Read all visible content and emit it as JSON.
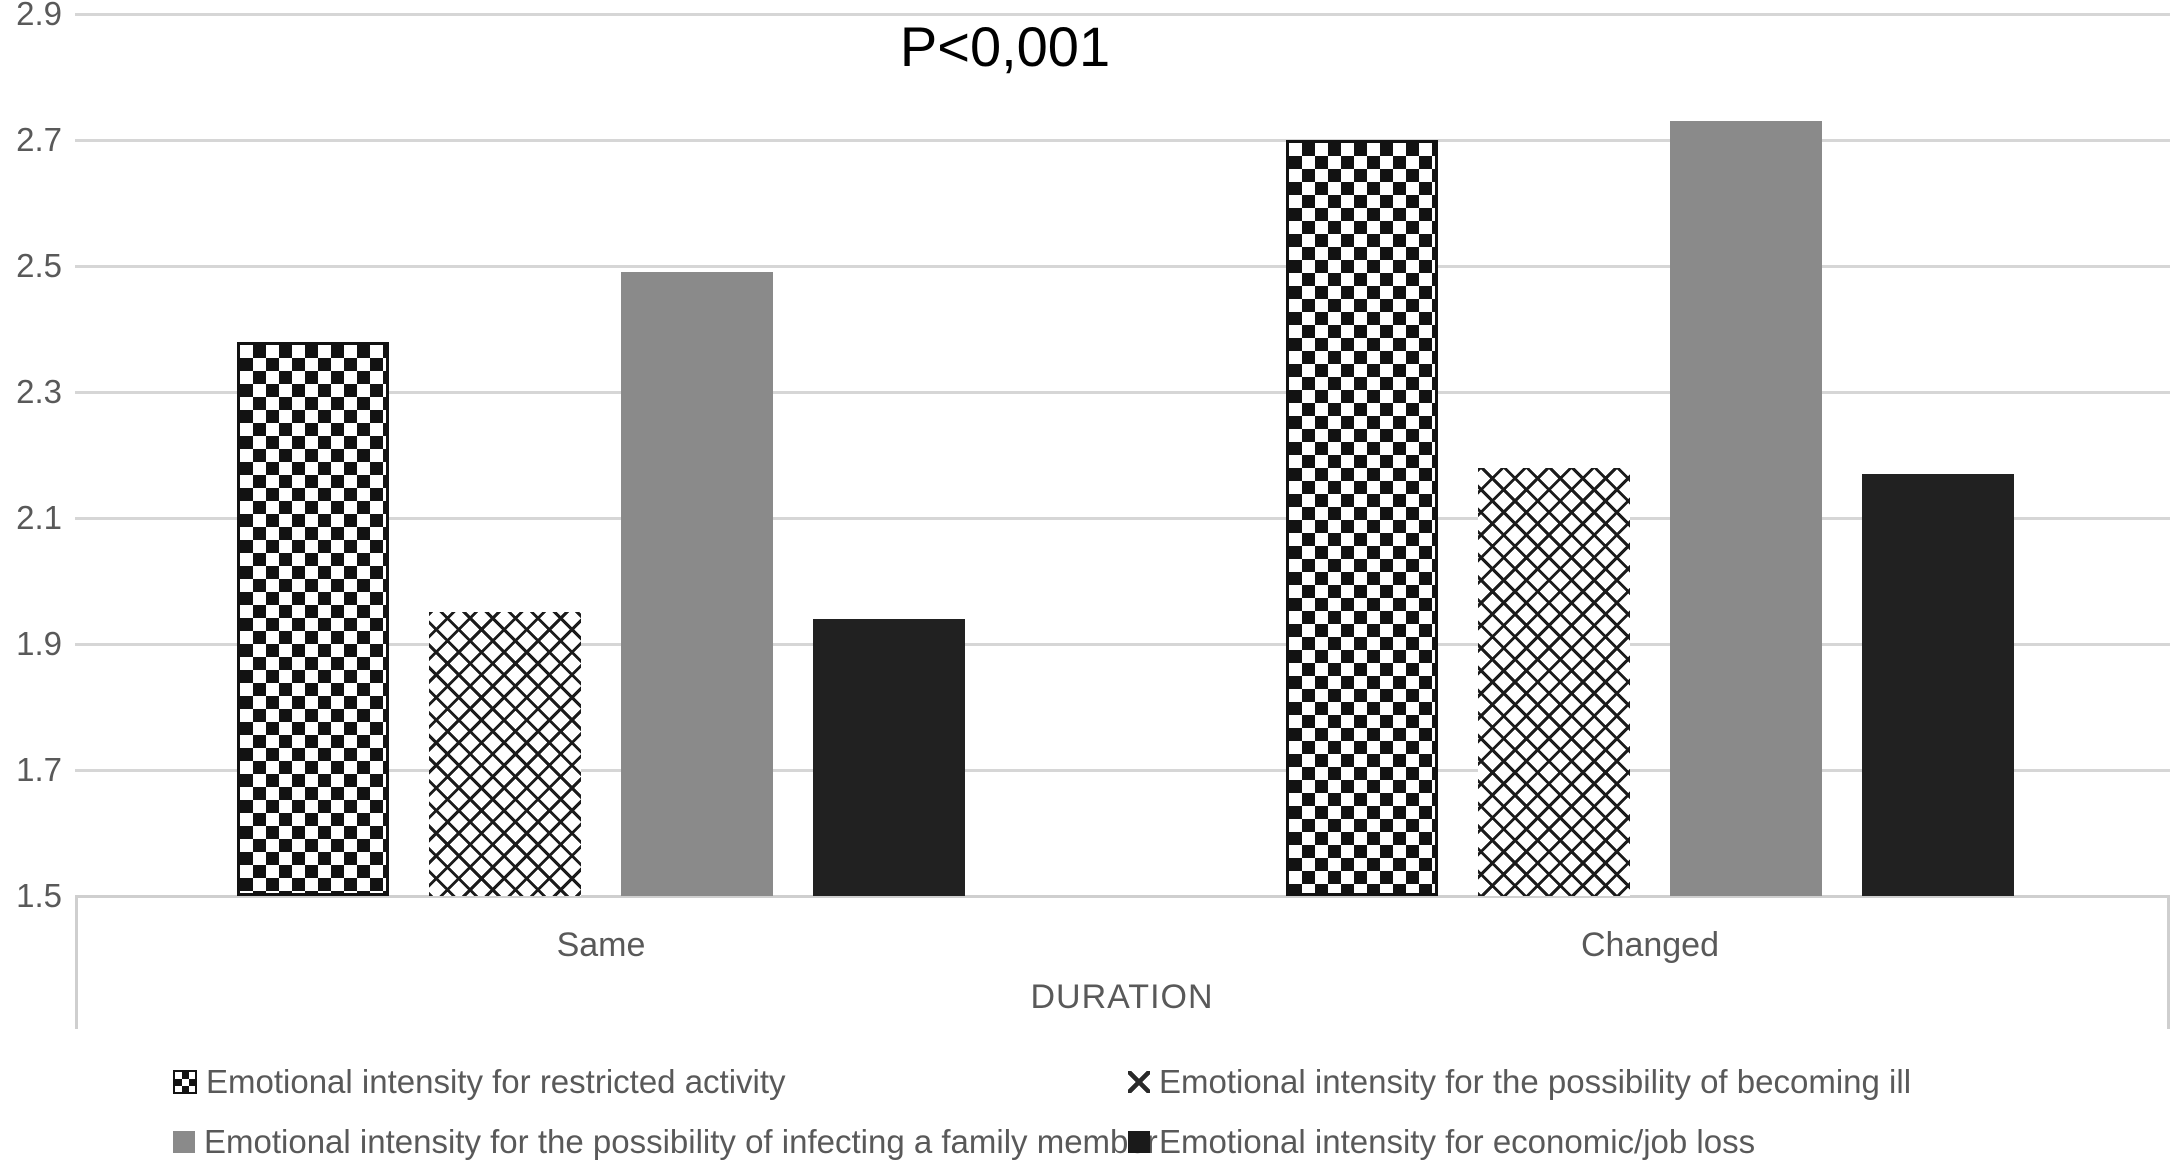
{
  "title": "P<0,001",
  "chart_data": {
    "type": "bar",
    "title": "P<0,001",
    "categories": [
      "Same",
      "Changed"
    ],
    "series": [
      {
        "name": "Emotional intensity for restricted activity",
        "pattern": "checker",
        "values": [
          2.38,
          2.7
        ]
      },
      {
        "name": "Emotional intensity for the possibility of becoming ill",
        "pattern": "crosshatch",
        "values": [
          1.95,
          2.18
        ]
      },
      {
        "name": "Emotional intensity for the possibility of infecting a family member",
        "pattern": "gray",
        "values": [
          2.49,
          2.73
        ]
      },
      {
        "name": "Emotional intensity for economic/job loss",
        "pattern": "dark",
        "values": [
          1.94,
          2.17
        ]
      }
    ],
    "xlabel": "DURATION",
    "ylabel": "",
    "ylim": [
      1.5,
      2.9
    ],
    "yticks": [
      1.5,
      1.7,
      1.9,
      2.1,
      2.3,
      2.5,
      2.7,
      2.9
    ],
    "grid": true,
    "legend_position": "bottom",
    "colors": {
      "gray_bar": "#8a8a8a",
      "dark_bar": "#212121",
      "checker_black": "#121212",
      "axis_text": "#595959",
      "gridline": "#d6d6d6",
      "title_text": "#000000"
    }
  }
}
